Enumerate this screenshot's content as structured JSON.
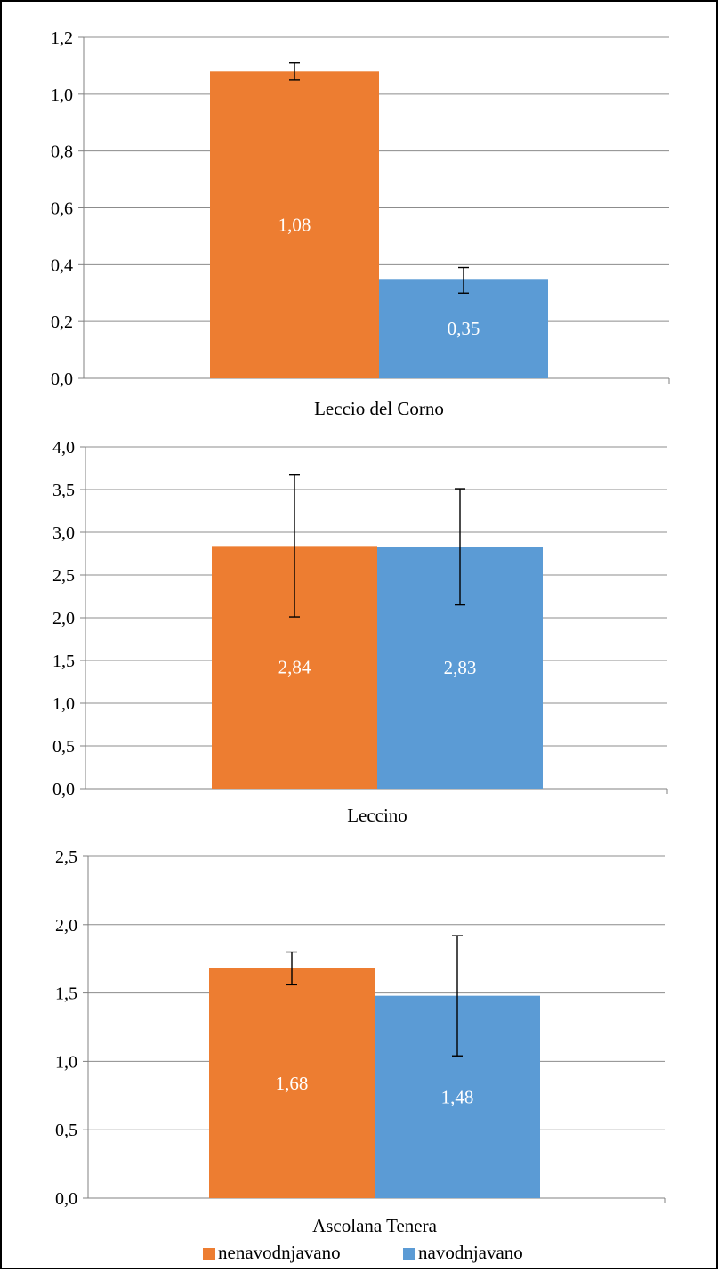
{
  "colors": {
    "nenavodnjavano": "#ED7D31",
    "navodnjavano": "#5B9BD5",
    "grid": "#8C8C8C",
    "axis": "#808080"
  },
  "legend": {
    "placement": "bottom",
    "items": [
      {
        "label": "nenavodnjavano",
        "color_key": "nenavodnjavano"
      },
      {
        "label": "navodnjavano",
        "color_key": "navodnjavano"
      }
    ]
  },
  "chart_data": [
    {
      "type": "bar",
      "categories": [
        "Leccio del Corno"
      ],
      "ylim": [
        0,
        1.2
      ],
      "ytick_step": 0.2,
      "yticks": [
        "0,0",
        "0,2",
        "0,4",
        "0,6",
        "0,8",
        "1,0",
        "1,2"
      ],
      "grid": true,
      "series": [
        {
          "name": "nenavodnjavano",
          "values": [
            1.08
          ],
          "labels": [
            "1,08"
          ],
          "error": [
            [
              1.05,
              1.11
            ]
          ]
        },
        {
          "name": "navodnjavano",
          "values": [
            0.35
          ],
          "labels": [
            "0,35"
          ],
          "error": [
            [
              0.3,
              0.39
            ]
          ]
        }
      ]
    },
    {
      "type": "bar",
      "categories": [
        "Leccino"
      ],
      "ylim": [
        0,
        4.0
      ],
      "ytick_step": 0.5,
      "yticks": [
        "0,0",
        "0,5",
        "1,0",
        "1,5",
        "2,0",
        "2,5",
        "3,0",
        "3,5",
        "4,0"
      ],
      "grid": true,
      "series": [
        {
          "name": "nenavodnjavano",
          "values": [
            2.84
          ],
          "labels": [
            "2,84"
          ],
          "error": [
            [
              2.01,
              3.67
            ]
          ]
        },
        {
          "name": "navodnjavano",
          "values": [
            2.83
          ],
          "labels": [
            "2,83"
          ],
          "error": [
            [
              2.15,
              3.51
            ]
          ]
        }
      ]
    },
    {
      "type": "bar",
      "categories": [
        "Ascolana Tenera"
      ],
      "ylim": [
        0,
        2.5
      ],
      "ytick_step": 0.5,
      "yticks": [
        "0,0",
        "0,5",
        "1,0",
        "1,5",
        "2,0",
        "2,5"
      ],
      "grid": true,
      "series": [
        {
          "name": "nenavodnjavano",
          "values": [
            1.68
          ],
          "labels": [
            "1,68"
          ],
          "error": [
            [
              1.56,
              1.8
            ]
          ]
        },
        {
          "name": "navodnjavano",
          "values": [
            1.48
          ],
          "labels": [
            "1,48"
          ],
          "error": [
            [
              1.04,
              1.92
            ]
          ]
        }
      ]
    }
  ]
}
